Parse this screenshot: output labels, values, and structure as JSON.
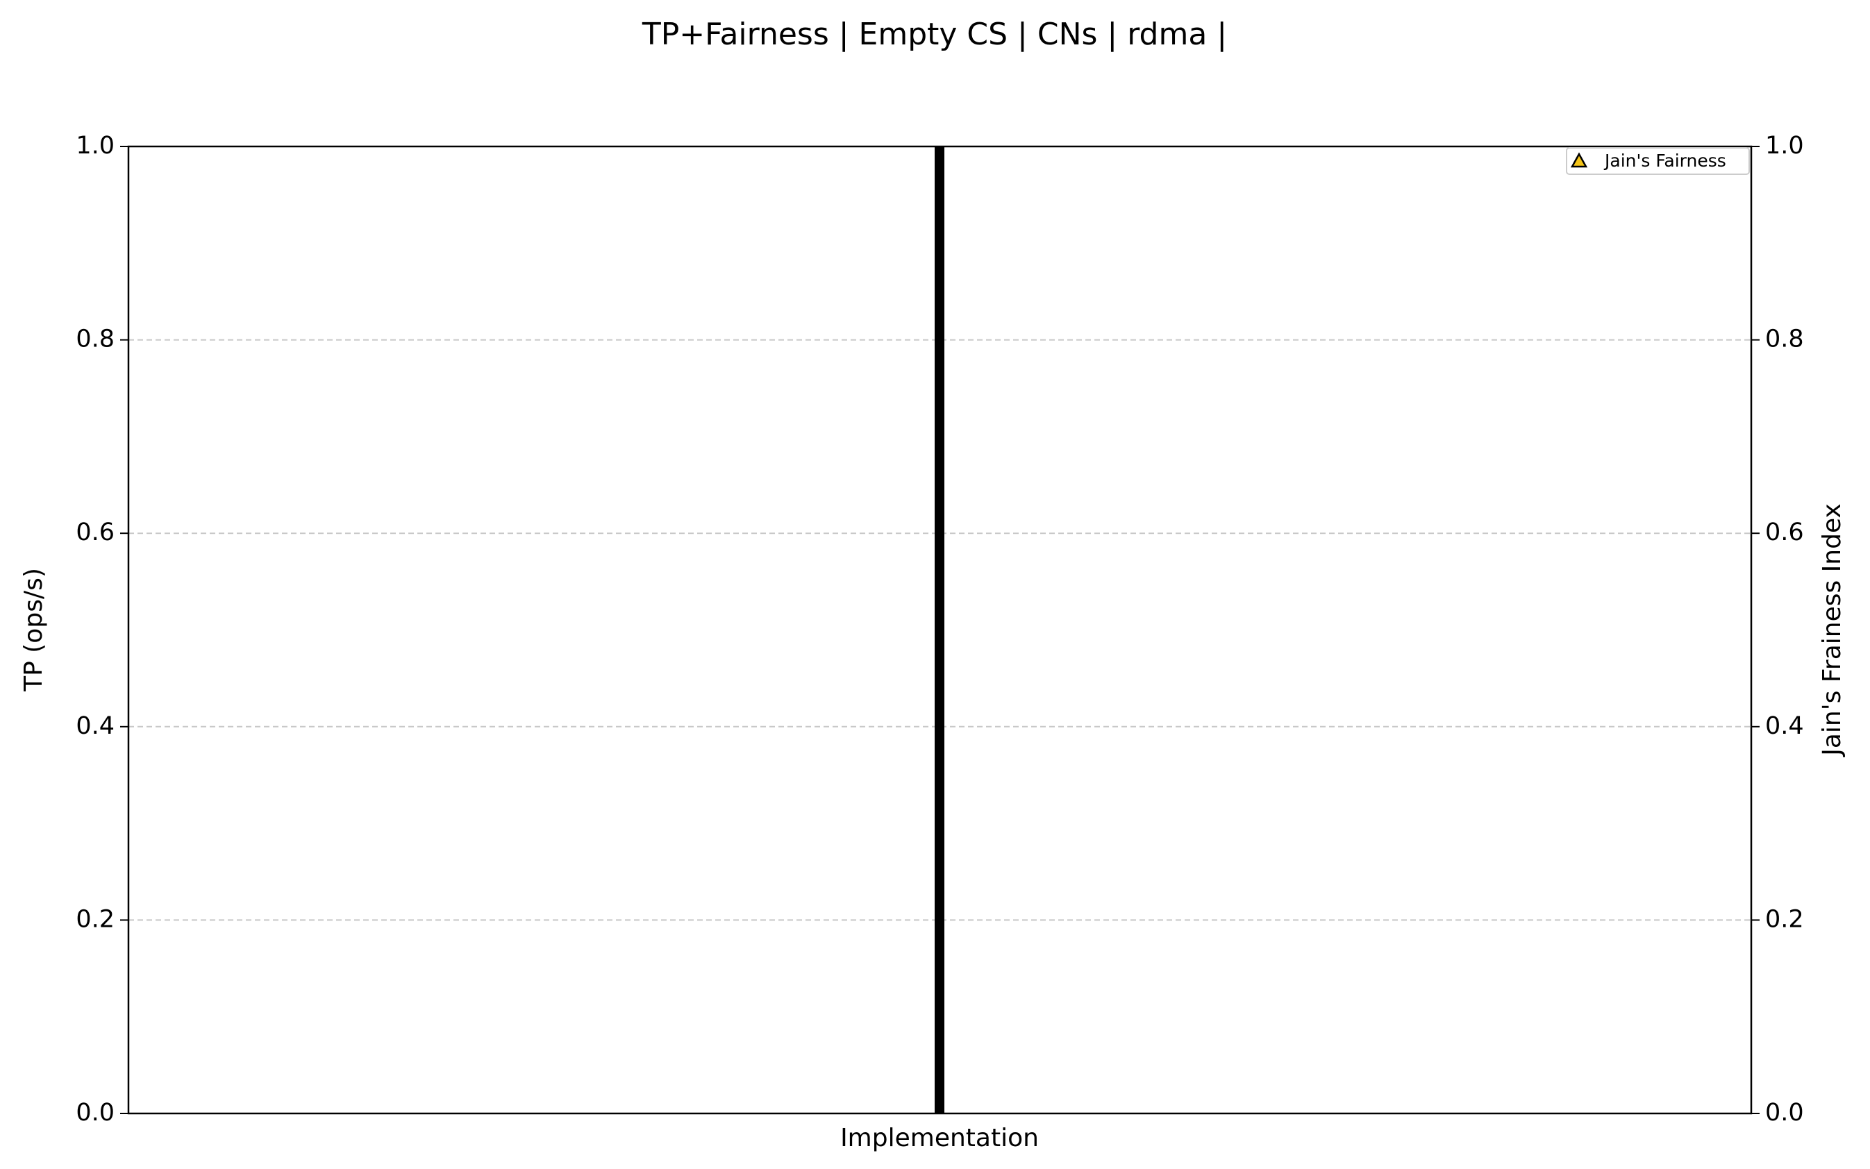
{
  "chart_data": {
    "type": "line",
    "title": "TP+Fairness | Empty CS |  CNs | rdma |",
    "x_label": "Implementation",
    "y_label": "TP (ops/s)",
    "y2_label": "Jain's Frainess Index",
    "categories": [],
    "series": [
      {
        "name": "Jain's Fairness",
        "color": "#f5c518",
        "marker": "triangle",
        "axis": "y2",
        "values": []
      }
    ],
    "ylim": [
      0,
      1
    ],
    "yticks": [
      {
        "value": 0,
        "label": "0.0"
      },
      0.2,
      0.4,
      0.6,
      0.8,
      {
        "value": 1,
        "label": "1.0"
      }
    ],
    "y2lim": [
      0,
      1
    ],
    "y2ticks": [
      {
        "value": 0,
        "label": "0.0"
      },
      0.2,
      0.4,
      0.6,
      0.8,
      {
        "value": 1,
        "label": "1.0"
      }
    ],
    "grid": "y",
    "legend": "upper right"
  }
}
